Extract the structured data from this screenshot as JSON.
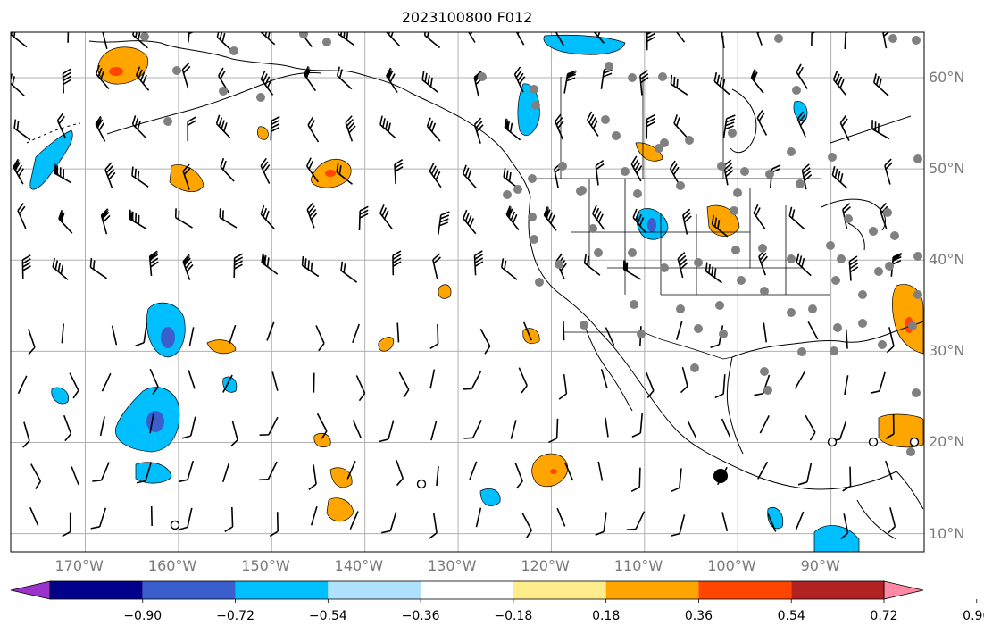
{
  "title": "2023100800 F012",
  "map": {
    "lon_range": [
      -178,
      -80
    ],
    "lat_range": [
      8,
      65
    ],
    "lon_ticks": [
      {
        "value": -170,
        "label": "170°W"
      },
      {
        "value": -160,
        "label": "160°W"
      },
      {
        "value": -150,
        "label": "150°W"
      },
      {
        "value": -140,
        "label": "140°W"
      },
      {
        "value": -130,
        "label": "130°W"
      },
      {
        "value": -120,
        "label": "120°W"
      },
      {
        "value": -110,
        "label": "110°W"
      },
      {
        "value": -100,
        "label": "100°W"
      },
      {
        "value": -90,
        "label": "90°W"
      }
    ],
    "lat_ticks": [
      {
        "value": 60,
        "label": "60°N"
      },
      {
        "value": 50,
        "label": "50°N"
      },
      {
        "value": 40,
        "label": "40°N"
      },
      {
        "value": 30,
        "label": "30°N"
      },
      {
        "value": 20,
        "label": "20°N"
      },
      {
        "value": 10,
        "label": "10°N"
      }
    ],
    "grid": true,
    "colors": {
      "land_line": "#000000",
      "grid": "#b0b0b0",
      "station": "#808080"
    }
  },
  "colorbar": {
    "bins": [
      "#9a32cd",
      "#00008b",
      "#3a5fcd",
      "#00bfff",
      "#b0e2ff",
      "#ffffff",
      "#ffec8b",
      "#ffa500",
      "#ff4500",
      "#b22222",
      "#ff89a5"
    ],
    "ticks": [
      "−0.90",
      "−0.72",
      "−0.54",
      "−0.36",
      "−0.18",
      "0.18",
      "0.36",
      "0.54",
      "0.72",
      "0.90"
    ],
    "extend": "both"
  }
}
